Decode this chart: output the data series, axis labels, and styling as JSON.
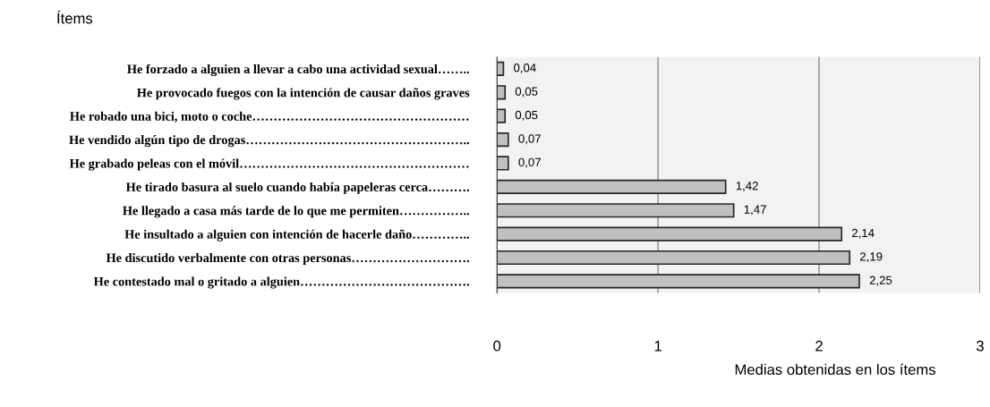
{
  "chart_data": {
    "type": "bar",
    "orientation": "horizontal",
    "ylabel": "Ítems",
    "xlabel": "Medias obtenidas en los ítems",
    "categories": [
      "He forzado a alguien a llevar a cabo una actividad sexual……..",
      "He provocado fuegos con la intención de causar daños graves",
      "He robado una bici, moto o coche……………………………………………",
      "He vendido algún tipo de drogas……………………………………………..",
      "He grabado peleas con el móvil………………………………………………",
      "He tirado basura al suelo cuando había papeleras cerca……….",
      "He llegado a casa más tarde de lo que me permiten……………..",
      "He insultado a alguien con intención de hacerle daño…………..",
      "He discutido verbalmente con otras personas……………………….",
      "He contestado mal o gritado a alguien…………………………………."
    ],
    "values": [
      0.04,
      0.05,
      0.05,
      0.07,
      0.07,
      1.42,
      1.47,
      2.14,
      2.19,
      2.25
    ],
    "value_labels": [
      "0,04",
      "0,05",
      "0,05",
      "0,07",
      "0,07",
      "1,42",
      "1,47",
      "2,14",
      "2,19",
      "2,25"
    ],
    "color": "#c0c0c0",
    "xlim": [
      0,
      3
    ],
    "xticks": [
      0,
      1,
      2,
      3
    ],
    "grid": "x",
    "legend": false
  }
}
